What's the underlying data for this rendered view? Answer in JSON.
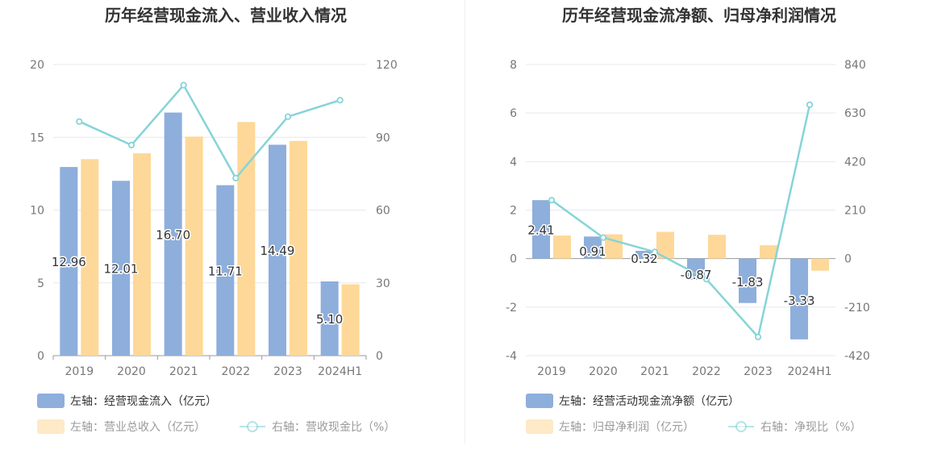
{
  "chart_data": [
    {
      "type": "bar",
      "title": "历年经营现金流入、营业收入情况",
      "categories": [
        "2019",
        "2020",
        "2021",
        "2022",
        "2023",
        "2024H1"
      ],
      "left_axis": {
        "min": 0,
        "max": 20,
        "ticks": [
          "0",
          "5",
          "10",
          "15",
          "20"
        ]
      },
      "right_axis": {
        "min": 0,
        "max": 120,
        "ticks": [
          "0",
          "30",
          "60",
          "90",
          "120"
        ]
      },
      "grid": true,
      "series": [
        {
          "name": "左轴：经营现金流入（亿元）",
          "type": "bar",
          "axis": "left",
          "color": "#8eaedc",
          "values": [
            12.96,
            12.01,
            16.7,
            11.71,
            14.49,
            5.1
          ],
          "labels": [
            "12.96",
            "12.01",
            "16.70",
            "11.71",
            "14.49",
            "5.10"
          ]
        },
        {
          "name": "左轴：营业总收入（亿元）",
          "type": "bar",
          "axis": "left",
          "color": "#fed898",
          "values": [
            13.5,
            13.9,
            15.05,
            16.05,
            14.75,
            4.9
          ]
        },
        {
          "name": "右轴：营收现金比（%）",
          "type": "line",
          "axis": "right",
          "color": "#86d4d8",
          "values": [
            96.5,
            86.8,
            111.5,
            73.2,
            98.5,
            105.3
          ]
        }
      ],
      "legend_position": "bottom-left"
    },
    {
      "type": "bar",
      "title": "历年经营现金流净额、归母净利润情况",
      "categories": [
        "2019",
        "2020",
        "2021",
        "2022",
        "2023",
        "2024H1"
      ],
      "left_axis": {
        "min": -4,
        "max": 8,
        "ticks": [
          "-4",
          "-2",
          "0",
          "2",
          "4",
          "6",
          "8"
        ]
      },
      "right_axis": {
        "min": -420,
        "max": 840,
        "ticks": [
          "-420",
          "-210",
          "0",
          "210",
          "420",
          "630",
          "840"
        ]
      },
      "grid": true,
      "series": [
        {
          "name": "左轴：经营活动现金流净额（亿元）",
          "type": "bar",
          "axis": "left",
          "color": "#8eaedc",
          "values": [
            2.41,
            0.91,
            0.32,
            -0.87,
            -1.83,
            -3.33
          ],
          "labels": [
            "2.41",
            "0.91",
            "0.32",
            "-0.87",
            "-1.83",
            "-3.33"
          ]
        },
        {
          "name": "左轴：归母净利润（亿元）",
          "type": "bar",
          "axis": "left",
          "color": "#fed898",
          "values": [
            0.95,
            1.0,
            1.1,
            0.98,
            0.55,
            -0.5
          ]
        },
        {
          "name": "右轴：净现比（%）",
          "type": "line",
          "axis": "right",
          "color": "#86d4d8",
          "values": [
            253,
            91,
            29,
            -89,
            -339,
            666
          ]
        }
      ],
      "legend_position": "bottom-left"
    }
  ]
}
